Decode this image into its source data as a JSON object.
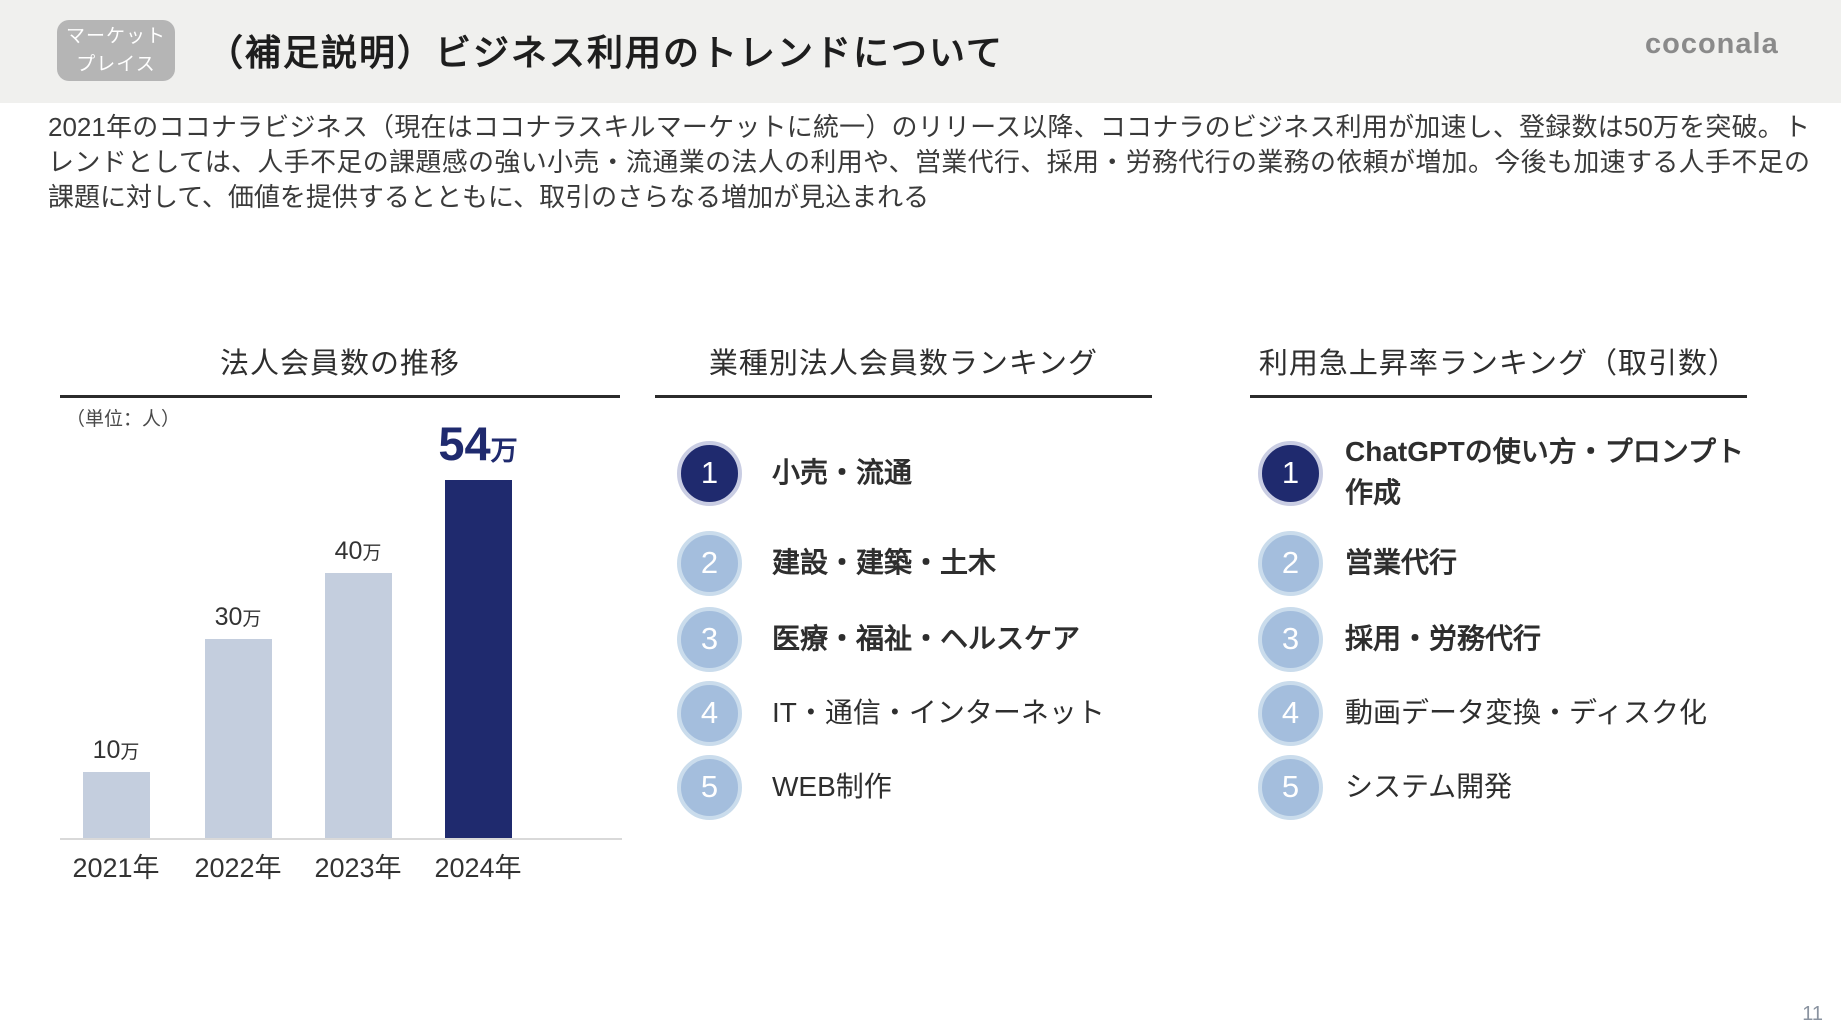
{
  "page": {
    "number": "11"
  },
  "header": {
    "badge": {
      "line1": "マーケット",
      "line2": "プレイス"
    },
    "title": "（補足説明）ビジネス利用のトレンドについて",
    "logo": "coconala"
  },
  "intro": "2021年のココナラビジネス（現在はココナラスキルマーケットに統一）のリリース以降、ココナラのビジネス利用が加速し、登録数は50万を突破。トレンドとしては、人手不足の課題感の強い小売・流通業の法人の利用や、営業代行、採用・労務代行の業務の依頼が増加。今後も加速する人手不足の課題に対して、価値を提供するとともに、取引のさらなる増加が見込まれる",
  "chart_data": {
    "type": "bar",
    "title": "法人会員数の推移",
    "unit_label": "（単位：人）",
    "categories": [
      "2021年",
      "2022年",
      "2023年",
      "2024年"
    ],
    "values": [
      100000,
      300000,
      400000,
      540000
    ],
    "value_labels": [
      "10万",
      "30万",
      "40万",
      "54万"
    ],
    "highlight_index": 3,
    "ylim": [
      0,
      570000
    ],
    "grid": false,
    "legend": false,
    "bar_color": "#c4cede",
    "highlight_color": "#1f2a6e"
  },
  "rankings": [
    {
      "title": "業種別法人会員数ランキング",
      "items": [
        {
          "rank": "1",
          "label": "小売・流通",
          "bold": true
        },
        {
          "rank": "2",
          "label": "建設・建築・土木",
          "bold": true
        },
        {
          "rank": "3",
          "label": "医療・福祉・ヘルスケア",
          "bold": true
        },
        {
          "rank": "4",
          "label": "IT・通信・インターネット",
          "bold": false
        },
        {
          "rank": "5",
          "label": "WEB制作",
          "bold": false
        }
      ]
    },
    {
      "title": "利用急上昇率ランキング（取引数）",
      "items": [
        {
          "rank": "1",
          "label": "ChatGPTの使い方・プロンプト作成",
          "bold": true
        },
        {
          "rank": "2",
          "label": "営業代行",
          "bold": true
        },
        {
          "rank": "3",
          "label": "採用・労務代行",
          "bold": true
        },
        {
          "rank": "4",
          "label": "動画データ変換・ディスク化",
          "bold": false
        },
        {
          "rank": "5",
          "label": "システム開発",
          "bold": false
        }
      ]
    }
  ],
  "colors": {
    "header_bg": "#f0f0ee",
    "badge_bg": "#b5b5b5",
    "accent_navy": "#1f2a6e",
    "bar_light": "#c4cede",
    "rank_circle_light": "#a4bedd",
    "rank_ring_light": "#cadcec",
    "rank_ring_navy": "#c9cde3",
    "underline": "#2b2b2b",
    "baseline": "#d9d9d9",
    "body_text": "#3a3a3a",
    "logo_gray": "#8a8a8a",
    "page_number_gray": "#8a93a0"
  }
}
